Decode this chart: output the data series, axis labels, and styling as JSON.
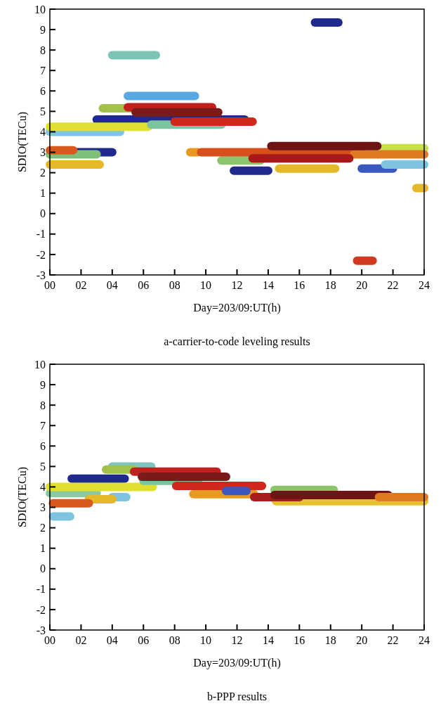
{
  "chart_data": [
    {
      "type": "line",
      "title": "a-carrier-to-code leveling results",
      "xlabel": "Day=203/09:UT(h)",
      "ylabel": "SDIO(TECu)",
      "xlim": [
        0,
        24
      ],
      "ylim": [
        -3,
        10
      ],
      "xticks": [
        {
          "value": 0,
          "label": "00"
        },
        {
          "value": 2,
          "label": "02"
        },
        {
          "value": 4,
          "label": "04"
        },
        {
          "value": 6,
          "label": "06"
        },
        {
          "value": 8,
          "label": "08"
        },
        {
          "value": 10,
          "label": "10"
        },
        {
          "value": 12,
          "label": "12"
        },
        {
          "value": 14,
          "label": "14"
        },
        {
          "value": 16,
          "label": "16"
        },
        {
          "value": 18,
          "label": "18"
        },
        {
          "value": 20,
          "label": "20"
        },
        {
          "value": 22,
          "label": "22"
        },
        {
          "value": 24,
          "label": "24"
        }
      ],
      "yticks": [
        -3,
        -2,
        -1,
        0,
        1,
        2,
        3,
        4,
        5,
        6,
        7,
        8,
        9,
        10
      ],
      "grid": false,
      "marker": "none",
      "line_style": "solid",
      "series": [
        {
          "color": "#7dc4b5",
          "x": [
            4.0,
            6.8
          ],
          "values": [
            7.75,
            7.75
          ]
        },
        {
          "color": "#1f2a8c",
          "x": [
            17.0,
            18.5
          ],
          "values": [
            9.35,
            9.35
          ]
        },
        {
          "color": "#1f2a8c",
          "x": [
            3.0,
            12.5
          ],
          "values": [
            4.6,
            4.6
          ]
        },
        {
          "color": "#7ec4e0",
          "x": [
            0.0,
            4.5
          ],
          "values": [
            4.0,
            4.0
          ]
        },
        {
          "color": "#e0e030",
          "x": [
            0.0,
            6.3
          ],
          "values": [
            4.25,
            4.25
          ]
        },
        {
          "color": "#5aa8e0",
          "x": [
            5.0,
            9.3
          ],
          "values": [
            5.75,
            5.75
          ]
        },
        {
          "color": "#a3c24a",
          "x": [
            3.4,
            5.5
          ],
          "values": [
            5.15,
            5.15
          ]
        },
        {
          "color": "#c0201e",
          "x": [
            5.0,
            10.4
          ],
          "values": [
            5.2,
            5.2
          ]
        },
        {
          "color": "#7a1a1a",
          "x": [
            5.5,
            10.8
          ],
          "values": [
            4.95,
            4.95
          ]
        },
        {
          "color": "#7cc4a0",
          "x": [
            6.5,
            11.0
          ],
          "values": [
            4.35,
            4.35
          ]
        },
        {
          "color": "#d0281c",
          "x": [
            8.0,
            13.0
          ],
          "values": [
            4.5,
            4.5
          ]
        },
        {
          "color": "#1f2a8c",
          "x": [
            0.3,
            4.0
          ],
          "values": [
            3.0,
            3.0
          ]
        },
        {
          "color": "#7cc07c",
          "x": [
            0.0,
            3.0
          ],
          "values": [
            2.9,
            2.9
          ]
        },
        {
          "color": "#d65a1e",
          "x": [
            0.0,
            1.5
          ],
          "values": [
            3.1,
            3.1
          ]
        },
        {
          "color": "#e5b82a",
          "x": [
            0.0,
            3.2
          ],
          "values": [
            2.4,
            2.4
          ]
        },
        {
          "color": "#1f2a8c",
          "x": [
            11.8,
            14.0
          ],
          "values": [
            2.1,
            2.1
          ]
        },
        {
          "color": "#8cc46c",
          "x": [
            11.0,
            13.5
          ],
          "values": [
            2.6,
            2.6
          ]
        },
        {
          "color": "#e89a20",
          "x": [
            9.0,
            9.5
          ],
          "values": [
            3.0,
            3.0
          ]
        },
        {
          "color": "#d6501e",
          "x": [
            9.7,
            20.0
          ],
          "values": [
            3.0,
            3.0
          ]
        },
        {
          "color": "#c8e048",
          "x": [
            21.4,
            24.0
          ],
          "values": [
            3.2,
            3.2
          ]
        },
        {
          "color": "#3a58c0",
          "x": [
            20.0,
            22.0
          ],
          "values": [
            2.2,
            2.2
          ]
        },
        {
          "color": "#e07a20",
          "x": [
            19.5,
            24.0
          ],
          "values": [
            2.9,
            2.9
          ]
        },
        {
          "color": "#7ec4e0",
          "x": [
            21.5,
            24.0
          ],
          "values": [
            2.4,
            2.4
          ]
        },
        {
          "color": "#e5b82a",
          "x": [
            14.7,
            18.3
          ],
          "values": [
            2.2,
            2.2
          ]
        },
        {
          "color": "#a81818",
          "x": [
            13.0,
            19.2
          ],
          "values": [
            2.7,
            2.7
          ]
        },
        {
          "color": "#6e1414",
          "x": [
            14.2,
            21.0
          ],
          "values": [
            3.3,
            3.3
          ]
        },
        {
          "color": "#e5b82a",
          "x": [
            23.5,
            24.0
          ],
          "values": [
            1.25,
            1.25
          ]
        },
        {
          "color": "#d03a1e",
          "x": [
            19.7,
            20.7
          ],
          "values": [
            -2.3,
            -2.3
          ]
        }
      ]
    },
    {
      "type": "line",
      "title": "b-PPP results",
      "xlabel": "Day=203/09:UT(h)",
      "ylabel": "SDIO(TECu)",
      "xlim": [
        0,
        24
      ],
      "ylim": [
        -3,
        10
      ],
      "xticks": [
        {
          "value": 0,
          "label": "00"
        },
        {
          "value": 2,
          "label": "02"
        },
        {
          "value": 4,
          "label": "04"
        },
        {
          "value": 6,
          "label": "06"
        },
        {
          "value": 8,
          "label": "08"
        },
        {
          "value": 10,
          "label": "10"
        },
        {
          "value": 12,
          "label": "12"
        },
        {
          "value": 14,
          "label": "14"
        },
        {
          "value": 16,
          "label": "16"
        },
        {
          "value": 18,
          "label": "18"
        },
        {
          "value": 20,
          "label": "20"
        },
        {
          "value": 22,
          "label": "22"
        },
        {
          "value": 24,
          "label": "24"
        }
      ],
      "yticks": [
        -3,
        -2,
        -1,
        0,
        1,
        2,
        3,
        4,
        5,
        6,
        7,
        8,
        9,
        10
      ],
      "grid": false,
      "marker": "none",
      "line_style": "solid",
      "series": [
        {
          "color": "#1f2a8c",
          "x": [
            1.4,
            4.8
          ],
          "values": [
            4.4,
            4.4
          ]
        },
        {
          "color": "#7ec4c0",
          "x": [
            4.0,
            6.5
          ],
          "values": [
            5.0,
            5.0
          ]
        },
        {
          "color": "#a3c24a",
          "x": [
            3.6,
            5.4
          ],
          "values": [
            4.85,
            4.85
          ]
        },
        {
          "color": "#8cc8a0",
          "x": [
            0.0,
            3.0
          ],
          "values": [
            3.7,
            3.7
          ]
        },
        {
          "color": "#e0e030",
          "x": [
            0.0,
            6.6
          ],
          "values": [
            4.0,
            4.0
          ]
        },
        {
          "color": "#7ec4e0",
          "x": [
            4.0,
            4.9
          ],
          "values": [
            3.5,
            3.5
          ]
        },
        {
          "color": "#e5b82a",
          "x": [
            2.5,
            4.0
          ],
          "values": [
            3.4,
            3.4
          ]
        },
        {
          "color": "#d65a1e",
          "x": [
            0.2,
            2.5
          ],
          "values": [
            3.2,
            3.2
          ]
        },
        {
          "color": "#7ec4e0",
          "x": [
            0.2,
            1.3
          ],
          "values": [
            2.55,
            2.55
          ]
        },
        {
          "color": "#7cc4a0",
          "x": [
            6.0,
            9.5
          ],
          "values": [
            4.3,
            4.3
          ]
        },
        {
          "color": "#c0201e",
          "x": [
            5.4,
            10.7
          ],
          "values": [
            4.75,
            4.75
          ]
        },
        {
          "color": "#7a1a1a",
          "x": [
            5.9,
            11.3
          ],
          "values": [
            4.5,
            4.5
          ]
        },
        {
          "color": "#e89a20",
          "x": [
            9.2,
            13.1
          ],
          "values": [
            3.65,
            3.65
          ]
        },
        {
          "color": "#d0281c",
          "x": [
            8.1,
            13.6
          ],
          "values": [
            4.05,
            4.05
          ]
        },
        {
          "color": "#8cc46c",
          "x": [
            14.4,
            18.2
          ],
          "values": [
            3.85,
            3.85
          ]
        },
        {
          "color": "#e5c030",
          "x": [
            14.5,
            24.0
          ],
          "values": [
            3.3,
            3.3
          ]
        },
        {
          "color": "#a51d1d",
          "x": [
            13.1,
            16.0
          ],
          "values": [
            3.5,
            3.5
          ]
        },
        {
          "color": "#6e1414",
          "x": [
            14.4,
            21.7
          ],
          "values": [
            3.6,
            3.6
          ]
        },
        {
          "color": "#e07a20",
          "x": [
            21.1,
            24.0
          ],
          "values": [
            3.5,
            3.5
          ]
        },
        {
          "color": "#3a58c0",
          "x": [
            11.3,
            12.6
          ],
          "values": [
            3.8,
            3.8
          ]
        }
      ]
    }
  ]
}
